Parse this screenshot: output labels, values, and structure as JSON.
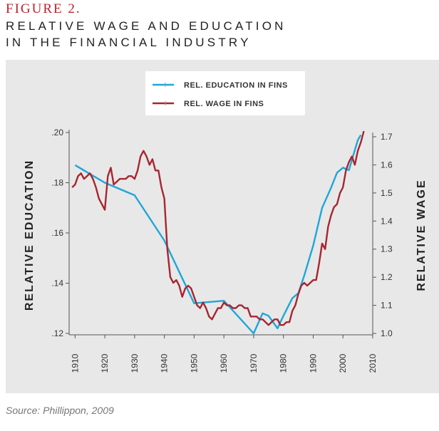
{
  "figure": {
    "label": "FIGURE 2.",
    "title_line1": "RELATIVE WAGE AND EDUCATION",
    "title_line2": "IN THE FINANCIAL INDUSTRY",
    "source": "Source: Phillippon, 2009"
  },
  "chart_data": {
    "type": "line",
    "xlabel": "",
    "ylabel_left": "RELATIVE EDUCATION",
    "ylabel_right": "RELATIVE WAGE",
    "xlim": [
      1908,
      2010
    ],
    "ylim_left": [
      0.12,
      0.2
    ],
    "ylim_right": [
      1.0,
      1.7
    ],
    "x_ticks": [
      "1910",
      "1920",
      "1930",
      "1940",
      "1950",
      "1960",
      "1970",
      "1980",
      "1990",
      "2000",
      "2010"
    ],
    "y_ticks_left": [
      ".12",
      ".14",
      ".16",
      ".18",
      ".20"
    ],
    "y_ticks_right": [
      "1.0",
      "1.1",
      "1.2",
      "1.3",
      "1.4",
      "1.5",
      "1.6",
      "1.7"
    ],
    "legend_position": "top-center",
    "grid": false,
    "series": [
      {
        "name": "REL. EDUCATION IN FINS",
        "axis": "left",
        "color": "#1fa6d8",
        "x": [
          1910,
          1920,
          1930,
          1940,
          1950,
          1960,
          1970,
          1973,
          1975,
          1978,
          1980,
          1983,
          1985,
          1987,
          1990,
          1993,
          1996,
          1998,
          2000,
          2002,
          2004,
          2005,
          2006
        ],
        "y": [
          0.187,
          0.18,
          0.175,
          0.157,
          0.132,
          0.133,
          0.12,
          0.128,
          0.127,
          0.122,
          0.127,
          0.134,
          0.136,
          0.143,
          0.155,
          0.17,
          0.178,
          0.184,
          0.186,
          0.185,
          0.193,
          0.197,
          0.199
        ]
      },
      {
        "name": "REL. WAGE IN FINS",
        "axis": "right",
        "color": "#a6262f",
        "x": [
          1909,
          1910,
          1911,
          1912,
          1913,
          1914,
          1915,
          1916,
          1917,
          1918,
          1919,
          1920,
          1921,
          1922,
          1923,
          1924,
          1925,
          1926,
          1927,
          1928,
          1929,
          1930,
          1931,
          1932,
          1933,
          1934,
          1935,
          1936,
          1937,
          1938,
          1939,
          1940,
          1941,
          1942,
          1943,
          1944,
          1945,
          1946,
          1947,
          1948,
          1949,
          1950,
          1951,
          1952,
          1953,
          1954,
          1955,
          1956,
          1957,
          1958,
          1959,
          1960,
          1961,
          1962,
          1963,
          1964,
          1965,
          1966,
          1967,
          1968,
          1969,
          1970,
          1971,
          1972,
          1973,
          1974,
          1975,
          1976,
          1977,
          1978,
          1979,
          1980,
          1981,
          1982,
          1983,
          1984,
          1985,
          1986,
          1987,
          1988,
          1989,
          1990,
          1991,
          1992,
          1993,
          1994,
          1995,
          1996,
          1997,
          1998,
          1999,
          2000,
          2001,
          2002,
          2003,
          2004,
          2005,
          2006,
          2007
        ],
        "y": [
          1.52,
          1.53,
          1.56,
          1.57,
          1.55,
          1.56,
          1.57,
          1.55,
          1.52,
          1.48,
          1.46,
          1.44,
          1.56,
          1.59,
          1.53,
          1.54,
          1.55,
          1.55,
          1.55,
          1.56,
          1.56,
          1.55,
          1.58,
          1.63,
          1.65,
          1.63,
          1.6,
          1.62,
          1.58,
          1.58,
          1.52,
          1.48,
          1.3,
          1.2,
          1.18,
          1.19,
          1.17,
          1.13,
          1.16,
          1.17,
          1.16,
          1.13,
          1.1,
          1.09,
          1.11,
          1.09,
          1.06,
          1.05,
          1.07,
          1.09,
          1.09,
          1.11,
          1.1,
          1.1,
          1.09,
          1.09,
          1.1,
          1.1,
          1.09,
          1.09,
          1.06,
          1.06,
          1.06,
          1.05,
          1.05,
          1.04,
          1.03,
          1.04,
          1.05,
          1.05,
          1.03,
          1.03,
          1.04,
          1.04,
          1.08,
          1.1,
          1.14,
          1.17,
          1.18,
          1.17,
          1.18,
          1.19,
          1.19,
          1.25,
          1.32,
          1.3,
          1.38,
          1.42,
          1.45,
          1.46,
          1.5,
          1.52,
          1.58,
          1.61,
          1.63,
          1.6,
          1.65,
          1.68,
          1.72
        ]
      }
    ]
  }
}
